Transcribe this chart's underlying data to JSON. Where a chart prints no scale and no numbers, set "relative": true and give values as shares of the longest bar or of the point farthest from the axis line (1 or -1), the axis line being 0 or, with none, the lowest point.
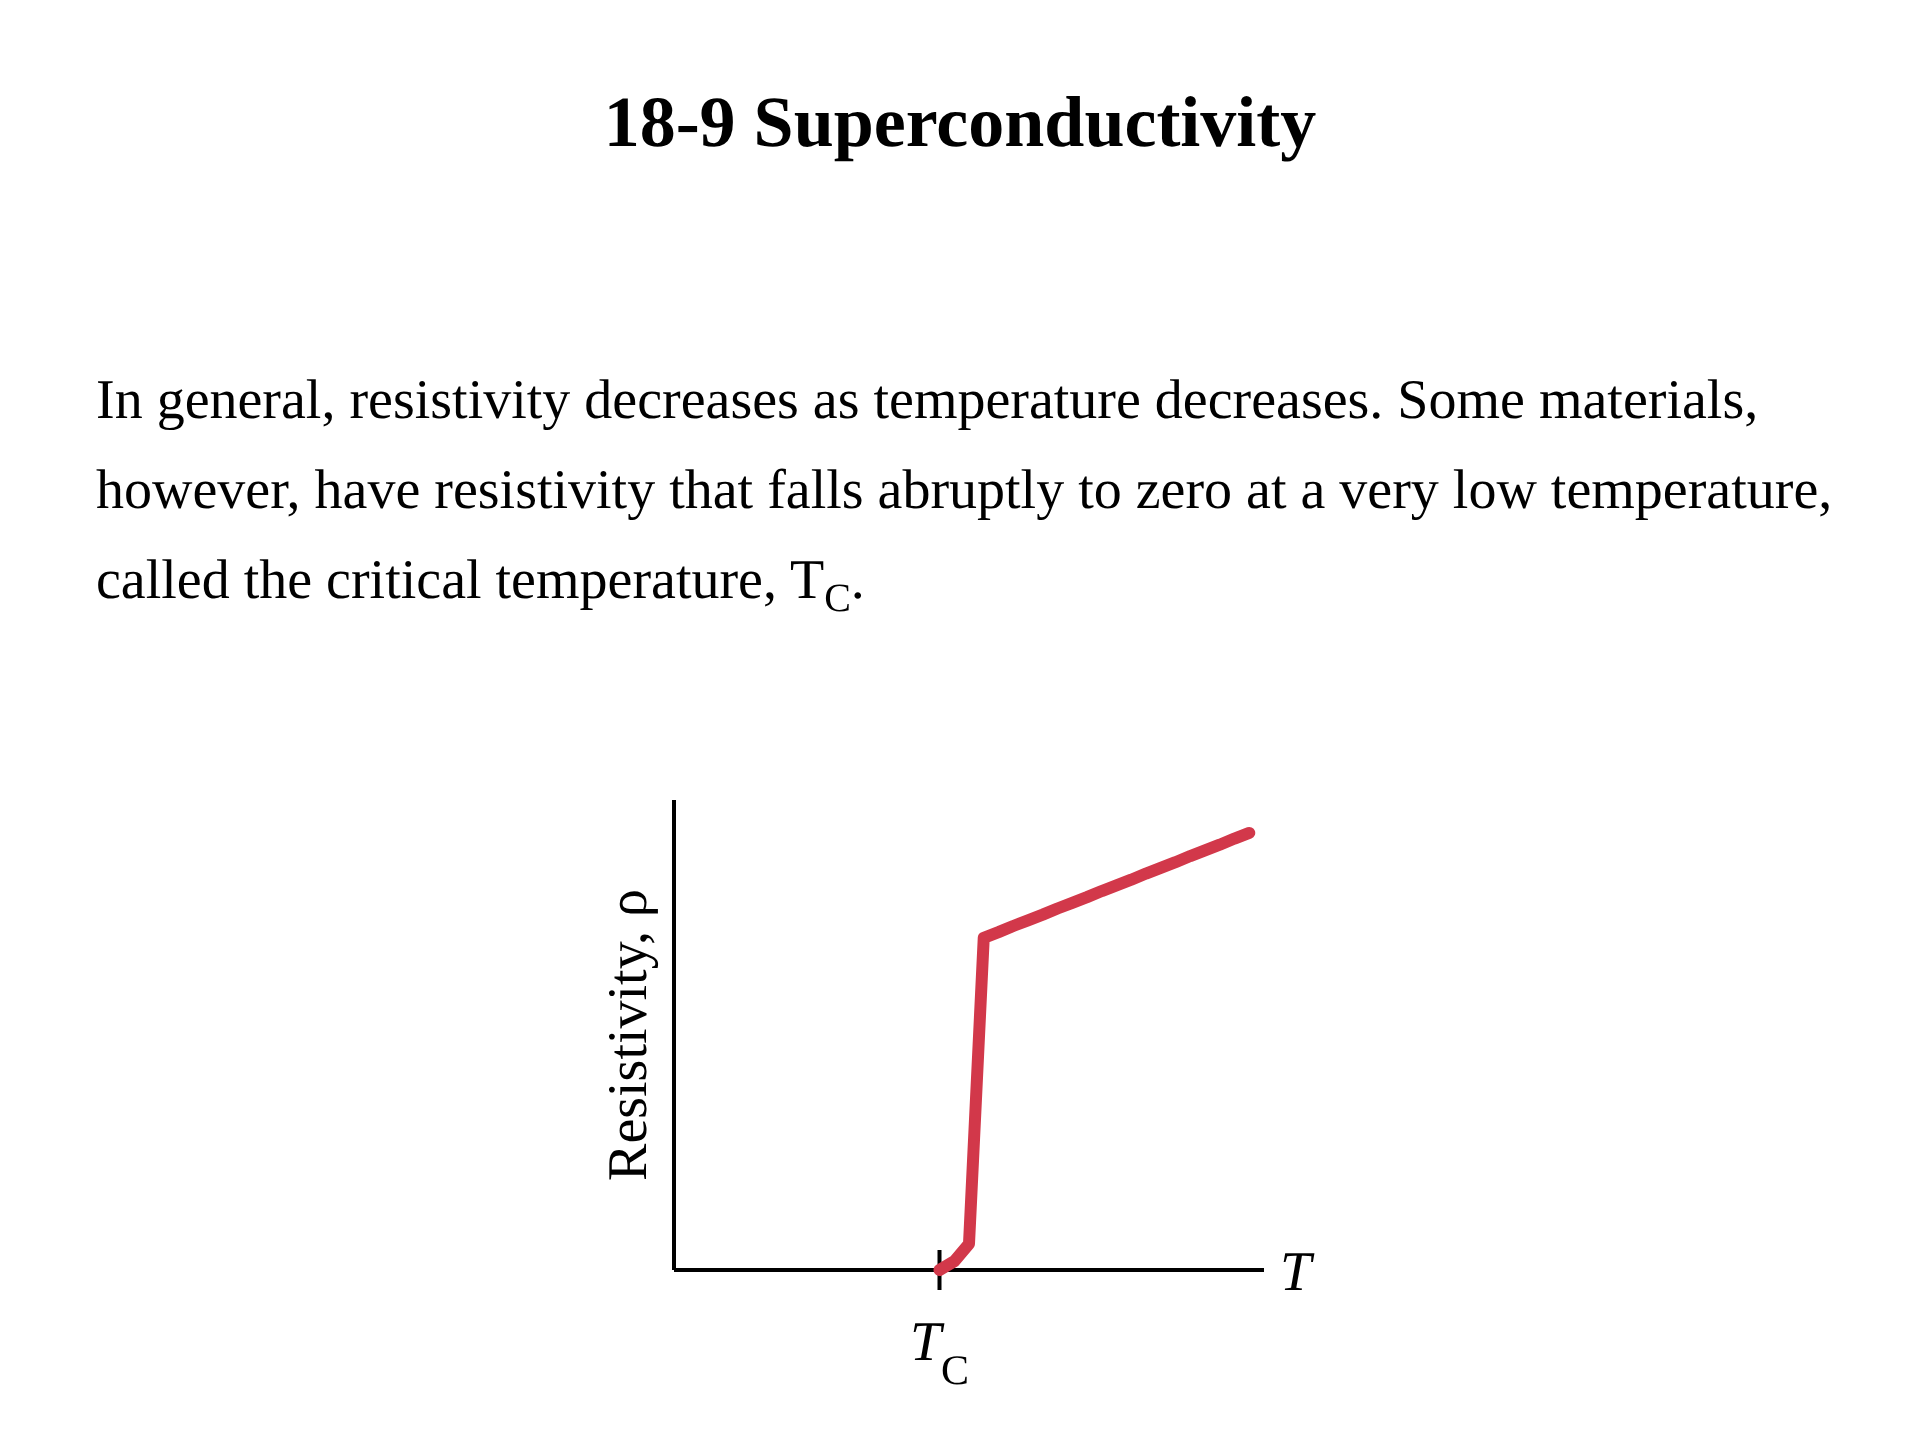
{
  "chart_data": {
    "type": "line",
    "title": "18-9 Superconductivity",
    "subtitle": "In general, resistivity decreases as temperature decreases. Some materials, however, have resistivity that falls abruptly to zero at a very low temperature, called the critical temperature, T$_{C}$.",
    "xlabel": "T",
    "ylabel": "Resistivity, ρ",
    "relative": true,
    "categories": [
      null,
      null,
      null,
      null,
      null,
      null,
      null,
      null,
      null,
      null,
      null,
      null,
      null,
      null,
      null,
      null,
      null,
      null,
      null,
      null,
      null,
      null,
      null,
      null,
      null,
      null,
      null,
      null,
      null,
      null,
      null,
      null,
      null,
      null,
      null,
      null,
      null,
      null,
      null,
      null,
      null
    ],
    "series": [
      {
        "color": "#d2384a",
        "values": [
          null,
          null,
          null,
          null,
          null,
          null,
          null,
          null,
          null,
          null,
          null,
          null,
          null,
          null,
          null,
          null,
          null,
          null,
          0,
          0.02,
          0.06,
          0.76,
          0.773,
          0.787,
          0.8,
          0.813,
          0.827,
          0.84,
          0.853,
          0.867,
          0.88,
          0.893,
          0.907,
          0.92,
          0.933,
          0.947,
          0.96,
          0.973,
          0.987,
          1,
          null
        ]
      }
    ],
    "annotations": [
      "T$_{C}$"
    ]
  }
}
